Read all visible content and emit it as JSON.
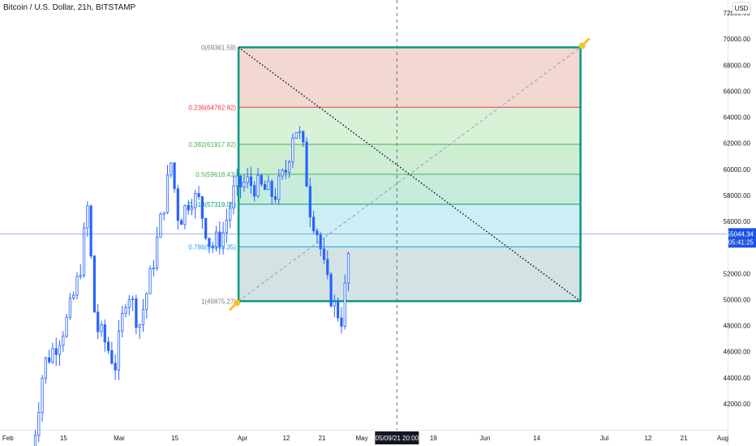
{
  "chart_data": {
    "type": "candlestick",
    "title": "Bitcoin / U.S. Dollar, 21h, BITSTAMP",
    "currency_badge": "USD",
    "grid": false,
    "x_ticks": [
      {
        "date": "2021-02-01",
        "label": "Feb"
      },
      {
        "date": "2021-02-15",
        "label": "15"
      },
      {
        "date": "2021-03-01",
        "label": "Mar"
      },
      {
        "date": "2021-03-15",
        "label": "15"
      },
      {
        "date": "2021-04-01",
        "label": "Apr"
      },
      {
        "date": "2021-04-12",
        "label": "12"
      },
      {
        "date": "2021-04-21",
        "label": "21"
      },
      {
        "date": "2021-05-01",
        "label": "May"
      },
      {
        "date": "2021-05-19",
        "label": "19"
      },
      {
        "date": "2021-06-01",
        "label": "Jun"
      },
      {
        "date": "2021-06-14",
        "label": "14"
      },
      {
        "date": "2021-07-01",
        "label": "Jul"
      },
      {
        "date": "2021-07-12",
        "label": "12"
      },
      {
        "date": "2021-07-21",
        "label": "21"
      },
      {
        "date": "2021-08-01",
        "label": "Aug"
      }
    ],
    "xlim": [
      "2021-01-30",
      "2021-08-01"
    ],
    "ylim": [
      40000,
      73000
    ],
    "y_ticks": [
      {
        "value": 42000,
        "label": "42000.00"
      },
      {
        "value": 44000,
        "label": "44000.00"
      },
      {
        "value": 46000,
        "label": "46000.00"
      },
      {
        "value": 48000,
        "label": "48000.00"
      },
      {
        "value": 50000,
        "label": "50000.00"
      },
      {
        "value": 52000,
        "label": "52000.00"
      },
      {
        "value": 56000,
        "label": "56000.00"
      },
      {
        "value": 58000,
        "label": "58000.00"
      },
      {
        "value": 60000,
        "label": "60000.00"
      },
      {
        "value": 62000,
        "label": "62000.00"
      },
      {
        "value": 64000,
        "label": "64000.00"
      },
      {
        "value": 66000,
        "label": "66000.00"
      },
      {
        "value": 68000,
        "label": "68000.00"
      },
      {
        "value": 70000,
        "label": "70000.00"
      },
      {
        "value": 72000,
        "label": "72000.00"
      }
    ],
    "price_line": {
      "value": 55044.34,
      "label": "55044.34",
      "countdown": "05:41:25",
      "color": "#1e53e5"
    },
    "crosshair": {
      "date": "2021-05-09",
      "label": "05/09/21 20:00"
    },
    "candle_color": "#2962ff",
    "candle_anchors": [
      [
        "2021-02-07",
        38000
      ],
      [
        "2021-02-10",
        45000
      ],
      [
        "2021-02-13",
        46500
      ],
      [
        "2021-02-16",
        48500
      ],
      [
        "2021-02-19",
        52000
      ],
      [
        "2021-02-21",
        57000
      ],
      [
        "2021-02-23",
        48000
      ],
      [
        "2021-02-25",
        47000
      ],
      [
        "2021-02-28",
        45000
      ],
      [
        "2021-03-03",
        51000
      ],
      [
        "2021-03-06",
        48000
      ],
      [
        "2021-03-09",
        52000
      ],
      [
        "2021-03-12",
        57000
      ],
      [
        "2021-03-14",
        60500
      ],
      [
        "2021-03-16",
        56000
      ],
      [
        "2021-03-19",
        58000
      ],
      [
        "2021-03-21",
        57500
      ],
      [
        "2021-03-24",
        54000
      ],
      [
        "2021-03-27",
        55000
      ],
      [
        "2021-03-30",
        58500
      ],
      [
        "2021-04-02",
        59000
      ],
      [
        "2021-04-06",
        58500
      ],
      [
        "2021-04-09",
        58000
      ],
      [
        "2021-04-12",
        60000
      ],
      [
        "2021-04-14",
        63500
      ],
      [
        "2021-04-16",
        62000
      ],
      [
        "2021-04-18",
        57000
      ],
      [
        "2021-04-20",
        55000
      ],
      [
        "2021-04-22",
        51500
      ],
      [
        "2021-04-24",
        49500
      ],
      [
        "2021-04-26",
        48500
      ],
      [
        "2021-04-28",
        54500
      ]
    ],
    "fibonacci": {
      "start": {
        "date": "2021-03-31",
        "price": 49875.27
      },
      "end": {
        "date": "2021-06-25",
        "price": 69361.59
      },
      "levels": [
        {
          "ratio": 0,
          "price": 69361.59,
          "label": "0(69361.59)",
          "color": "#787b86",
          "fill": "#f2d8d0"
        },
        {
          "ratio": 0.236,
          "price": 64762.82,
          "label": "0.236(64762.82)",
          "color": "#f23645",
          "fill": "#d8f2d8"
        },
        {
          "ratio": 0.382,
          "price": 61917.82,
          "label": "0.382(61917.82)",
          "color": "#4caf50",
          "fill": "#cdeed2"
        },
        {
          "ratio": 0.5,
          "price": 59618.43,
          "label": "0.5(59618.43)",
          "color": "#4caf50",
          "fill": "#c6ecdc"
        },
        {
          "ratio": 0.618,
          "price": 57319.05,
          "label": "0.618(57319.05)",
          "color": "#089981",
          "fill": "#cdeef5"
        },
        {
          "ratio": 0.786,
          "price": 54045.35,
          "label": "0.786(54045.35)",
          "color": "#2196f3",
          "fill": "#d3e3e3"
        },
        {
          "ratio": 1,
          "price": 49875.27,
          "label": "1(49875.27)",
          "color": "#787b86",
          "fill": null
        }
      ],
      "frame_color": "#089981",
      "handle_color": "#f5c12a"
    }
  }
}
